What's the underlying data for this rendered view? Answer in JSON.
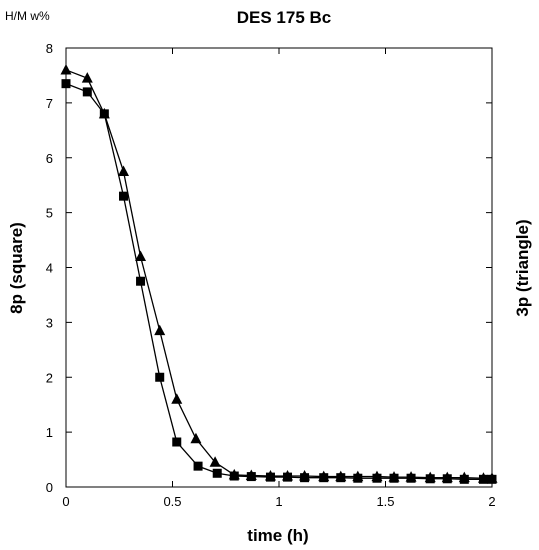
{
  "chart_data": {
    "type": "line",
    "title": "DES 175 Bc",
    "unit_label": "H/M w%",
    "xlabel": "time (h)",
    "ylabel_left": "8p (square)",
    "ylabel_right": "3p (triangle)",
    "xlim": [
      0,
      2
    ],
    "ylim": [
      0,
      8
    ],
    "x_ticks": [
      0,
      0.5,
      1,
      1.5,
      2
    ],
    "x_tick_labels": [
      "0",
      "0.5",
      "1",
      "1.5",
      "2"
    ],
    "y_ticks": [
      0,
      1,
      2,
      3,
      4,
      5,
      6,
      7,
      8
    ],
    "y_tick_labels": [
      "0",
      "1",
      "2",
      "3",
      "4",
      "5",
      "6",
      "7",
      "8"
    ],
    "grid": false,
    "legend": "none",
    "series": [
      {
        "marker": "square",
        "color": "#000000",
        "x": [
          0,
          0.1,
          0.18,
          0.27,
          0.35,
          0.44,
          0.52,
          0.62,
          0.71,
          0.79,
          0.87,
          0.96,
          1.04,
          1.12,
          1.21,
          1.29,
          1.37,
          1.46,
          1.54,
          1.62,
          1.71,
          1.79,
          1.87,
          1.96,
          2.0
        ],
        "y": [
          7.35,
          7.2,
          6.8,
          5.3,
          3.75,
          2.0,
          0.82,
          0.38,
          0.25,
          0.2,
          0.19,
          0.18,
          0.18,
          0.17,
          0.17,
          0.17,
          0.16,
          0.16,
          0.16,
          0.16,
          0.15,
          0.15,
          0.14,
          0.14,
          0.14
        ]
      },
      {
        "marker": "triangle",
        "color": "#000000",
        "x": [
          0,
          0.1,
          0.18,
          0.27,
          0.35,
          0.44,
          0.52,
          0.61,
          0.7,
          0.79,
          0.87,
          0.96,
          1.04,
          1.12,
          1.21,
          1.29,
          1.37,
          1.46,
          1.54,
          1.62,
          1.71,
          1.79,
          1.87,
          1.96,
          2.0
        ],
        "y": [
          7.6,
          7.45,
          6.8,
          5.75,
          4.2,
          2.85,
          1.6,
          0.88,
          0.45,
          0.22,
          0.21,
          0.2,
          0.2,
          0.2,
          0.19,
          0.19,
          0.19,
          0.19,
          0.18,
          0.18,
          0.17,
          0.17,
          0.17,
          0.16,
          0.16
        ]
      }
    ]
  }
}
